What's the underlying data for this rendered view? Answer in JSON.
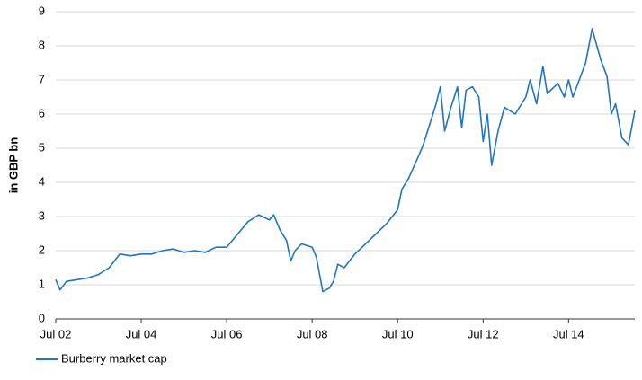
{
  "chart_data": {
    "type": "line",
    "y_label": "in GBP bn",
    "x": [
      2002.5,
      2002.6,
      2002.75,
      2003.0,
      2003.25,
      2003.5,
      2003.75,
      2004.0,
      2004.25,
      2004.5,
      2004.75,
      2005.0,
      2005.25,
      2005.5,
      2005.75,
      2006.0,
      2006.25,
      2006.5,
      2006.7,
      2007.0,
      2007.25,
      2007.5,
      2007.6,
      2007.75,
      2007.9,
      2008.0,
      2008.1,
      2008.25,
      2008.5,
      2008.6,
      2008.75,
      2008.9,
      2009.0,
      2009.1,
      2009.25,
      2009.5,
      2009.75,
      2010.0,
      2010.25,
      2010.5,
      2010.6,
      2010.75,
      2011.0,
      2011.1,
      2011.25,
      2011.4,
      2011.5,
      2011.6,
      2011.75,
      2011.9,
      2012.0,
      2012.1,
      2012.25,
      2012.4,
      2012.5,
      2012.6,
      2012.7,
      2012.85,
      2013.0,
      2013.25,
      2013.5,
      2013.6,
      2013.75,
      2013.9,
      2014.0,
      2014.25,
      2014.4,
      2014.5,
      2014.6,
      2014.75,
      2014.9,
      2015.05,
      2015.25,
      2015.4,
      2015.5,
      2015.6,
      2015.75,
      2015.9,
      2016.05
    ],
    "series": [
      {
        "name": "Burberry market cap",
        "color": "#1f75c4",
        "values": [
          1.15,
          0.85,
          1.1,
          1.15,
          1.2,
          1.3,
          1.5,
          1.9,
          1.85,
          1.9,
          1.9,
          2.0,
          2.05,
          1.95,
          2.0,
          1.95,
          2.1,
          2.1,
          2.4,
          2.85,
          3.05,
          2.9,
          3.05,
          2.6,
          2.3,
          1.7,
          2.0,
          2.2,
          2.1,
          1.8,
          0.8,
          0.9,
          1.1,
          1.6,
          1.5,
          1.9,
          2.2,
          2.5,
          2.8,
          3.2,
          3.8,
          4.1,
          4.8,
          5.1,
          5.7,
          6.3,
          6.8,
          5.5,
          6.2,
          6.8,
          5.6,
          6.7,
          6.8,
          6.5,
          5.2,
          6.0,
          4.5,
          5.5,
          6.2,
          6.0,
          6.5,
          7.0,
          6.3,
          7.4,
          6.6,
          6.9,
          6.5,
          7.0,
          6.5,
          7.0,
          7.5,
          8.5,
          7.6,
          7.1,
          6.0,
          6.3,
          5.3,
          5.1,
          6.1
        ]
      }
    ],
    "xlim": [
      2002.5,
      2016.05
    ],
    "ylim": [
      0,
      9
    ],
    "xticks": [
      {
        "value": 2002.5,
        "label": "Jul 02"
      },
      {
        "value": 2004.5,
        "label": "Jul 04"
      },
      {
        "value": 2006.5,
        "label": "Jul 06"
      },
      {
        "value": 2008.5,
        "label": "Jul 08"
      },
      {
        "value": 2010.5,
        "label": "Jul 10"
      },
      {
        "value": 2012.5,
        "label": "Jul 12"
      },
      {
        "value": 2014.5,
        "label": "Jul 14"
      }
    ],
    "yticks": [
      0,
      1,
      2,
      3,
      4,
      5,
      6,
      7,
      8,
      9
    ],
    "grid": true,
    "legend": "bottom-left"
  }
}
